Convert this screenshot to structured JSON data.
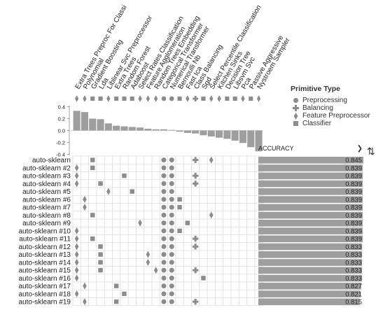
{
  "primitives": [
    {
      "name": "Extra Trees Preproc For Classi",
      "type": "Feature Preprocessor",
      "weight": 0.33
    },
    {
      "name": "Polynomial",
      "type": "Feature Preprocessor",
      "weight": 0.31
    },
    {
      "name": "Gradient Boosting",
      "type": "Classifier",
      "weight": 0.2
    },
    {
      "name": "Lda",
      "type": "Classifier",
      "weight": 0.19
    },
    {
      "name": "Liblinear Svc Preprocessor",
      "type": "Feature Preprocessor",
      "weight": 0.12
    },
    {
      "name": "Extra Trees",
      "type": "Classifier",
      "weight": 0.08
    },
    {
      "name": "Random Forest",
      "type": "Classifier",
      "weight": 0.07
    },
    {
      "name": "Adaboost",
      "type": "Classifier",
      "weight": 0.06
    },
    {
      "name": "Select Rates Classification",
      "type": "Feature Preprocessor",
      "weight": 0.05
    },
    {
      "name": "Feature Agglomeration",
      "type": "Feature Preprocessor",
      "weight": 0.03
    },
    {
      "name": "Random Trees Embedding",
      "type": "Feature Preprocessor",
      "weight": 0.02
    },
    {
      "name": "Categorical Transformer",
      "type": "Preprocessing",
      "weight": 0.02
    },
    {
      "name": "Numerical Transformer",
      "type": "Preprocessing",
      "weight": 0.01
    },
    {
      "name": "Bernoulli Nb",
      "type": "Classifier",
      "weight": -0.02
    },
    {
      "name": "Fast Ica",
      "type": "Feature Preprocessor",
      "weight": -0.04
    },
    {
      "name": "Class Balancing",
      "type": "Balancing",
      "weight": -0.05
    },
    {
      "name": "Sgd",
      "type": "Classifier",
      "weight": -0.08
    },
    {
      "name": "Select Percentile Classification",
      "type": "Feature Preprocessor",
      "weight": -0.1
    },
    {
      "name": "Kitchen Sinks",
      "type": "Feature Preprocessor",
      "weight": -0.12
    },
    {
      "name": "Decision Tree",
      "type": "Classifier",
      "weight": -0.14
    },
    {
      "name": "Libsvm Svc",
      "type": "Classifier",
      "weight": -0.17
    },
    {
      "name": "Pca",
      "type": "Feature Preprocessor",
      "weight": -0.21
    },
    {
      "name": "Passive Aggressive",
      "type": "Classifier",
      "weight": -0.28
    },
    {
      "name": "Nystroem Sampler",
      "type": "Feature Preprocessor",
      "weight": -0.35
    }
  ],
  "weight_axis": {
    "ticks": [
      "0.4",
      "0.2",
      "0.0",
      "-0.2",
      "-0.4"
    ],
    "range": [
      -0.45,
      0.45
    ]
  },
  "legend": {
    "title": "Primitive Type",
    "items": [
      {
        "label": "Preprocessing",
        "icon": "circle-icon"
      },
      {
        "label": "Balancing",
        "icon": "plus-icon"
      },
      {
        "label": "Feature Preprocessor",
        "icon": "diamond-icon"
      },
      {
        "label": "Classifier",
        "icon": "square-icon"
      }
    ]
  },
  "sort": {
    "metric": "ACCURACY"
  },
  "colors": {
    "mark": "#8c8c8c",
    "bar": "#9e9e9e",
    "grid": "#dddddd",
    "text": "#222222"
  },
  "pipelines": [
    {
      "name": "auto-sklearn",
      "score": 0.845,
      "score_label": "0.845",
      "cells": [
        [
          2,
          "square"
        ],
        [
          11,
          "circle"
        ],
        [
          12,
          "circle"
        ],
        [
          15,
          "plus"
        ],
        [
          17,
          "diamond"
        ]
      ]
    },
    {
      "name": "auto-sklearn #2",
      "score": 0.839,
      "score_label": "0.839",
      "cells": [
        [
          0,
          "diamond"
        ],
        [
          2,
          "square"
        ],
        [
          11,
          "circle"
        ],
        [
          12,
          "circle"
        ]
      ]
    },
    {
      "name": "auto-sklearn #3",
      "score": 0.839,
      "score_label": "0.839",
      "cells": [
        [
          0,
          "diamond"
        ],
        [
          6,
          "square"
        ],
        [
          11,
          "circle"
        ],
        [
          12,
          "circle"
        ],
        [
          15,
          "plus"
        ]
      ]
    },
    {
      "name": "auto-sklearn #4",
      "score": 0.839,
      "score_label": "0.839",
      "cells": [
        [
          0,
          "diamond"
        ],
        [
          3,
          "square"
        ],
        [
          11,
          "circle"
        ],
        [
          12,
          "circle"
        ],
        [
          15,
          "plus"
        ]
      ]
    },
    {
      "name": "auto-sklearn #5",
      "score": 0.839,
      "score_label": "0.839",
      "cells": [
        [
          4,
          "diamond"
        ],
        [
          7,
          "square"
        ],
        [
          11,
          "circle"
        ],
        [
          12,
          "circle"
        ]
      ]
    },
    {
      "name": "auto-sklearn #6",
      "score": 0.839,
      "score_label": "0.839",
      "cells": [
        [
          1,
          "diamond"
        ],
        [
          11,
          "circle"
        ],
        [
          12,
          "circle"
        ],
        [
          13,
          "square"
        ]
      ]
    },
    {
      "name": "auto-sklearn #7",
      "score": 0.839,
      "score_label": "0.839",
      "cells": [
        [
          1,
          "diamond"
        ],
        [
          11,
          "circle"
        ],
        [
          12,
          "circle"
        ],
        [
          13,
          "square"
        ]
      ]
    },
    {
      "name": "auto-sklearn #8",
      "score": 0.839,
      "score_label": "0.839",
      "cells": [
        [
          2,
          "square"
        ],
        [
          11,
          "circle"
        ],
        [
          12,
          "circle"
        ],
        [
          17,
          "diamond"
        ]
      ]
    },
    {
      "name": "auto-sklearn #9",
      "score": 0.839,
      "score_label": "0.839",
      "cells": [
        [
          8,
          "diamond"
        ],
        [
          11,
          "circle"
        ],
        [
          12,
          "circle"
        ],
        [
          14,
          "square"
        ]
      ]
    },
    {
      "name": "auto-sklearn #10",
      "score": 0.839,
      "score_label": "0.839",
      "cells": [
        [
          0,
          "diamond"
        ],
        [
          11,
          "circle"
        ],
        [
          12,
          "circle"
        ],
        [
          13,
          "square"
        ]
      ]
    },
    {
      "name": "auto-sklearn #11",
      "score": 0.839,
      "score_label": "0.839",
      "cells": [
        [
          0,
          "diamond"
        ],
        [
          2,
          "square"
        ],
        [
          11,
          "circle"
        ],
        [
          12,
          "circle"
        ],
        [
          15,
          "plus"
        ]
      ]
    },
    {
      "name": "auto-sklearn #12",
      "score": 0.833,
      "score_label": "0.833",
      "cells": [
        [
          0,
          "diamond"
        ],
        [
          3,
          "square"
        ],
        [
          11,
          "circle"
        ],
        [
          12,
          "circle"
        ],
        [
          15,
          "plus"
        ]
      ]
    },
    {
      "name": "auto-sklearn #13",
      "score": 0.833,
      "score_label": "0.833",
      "cells": [
        [
          0,
          "diamond"
        ],
        [
          3,
          "square"
        ],
        [
          9,
          "diamond"
        ],
        [
          11,
          "circle"
        ],
        [
          12,
          "circle"
        ]
      ]
    },
    {
      "name": "auto-sklearn #14",
      "score": 0.833,
      "score_label": "0.833",
      "cells": [
        [
          0,
          "diamond"
        ],
        [
          3,
          "square"
        ],
        [
          9,
          "diamond"
        ],
        [
          11,
          "circle"
        ],
        [
          12,
          "circle"
        ]
      ]
    },
    {
      "name": "auto-sklearn #15",
      "score": 0.833,
      "score_label": "0.833",
      "cells": [
        [
          0,
          "diamond"
        ],
        [
          3,
          "square"
        ],
        [
          10,
          "diamond"
        ],
        [
          11,
          "circle"
        ],
        [
          12,
          "circle"
        ],
        [
          15,
          "plus"
        ]
      ]
    },
    {
      "name": "auto-sklearn #16",
      "score": 0.833,
      "score_label": "0.833",
      "cells": [
        [
          0,
          "diamond"
        ],
        [
          11,
          "circle"
        ],
        [
          12,
          "circle"
        ],
        [
          16,
          "square"
        ]
      ]
    },
    {
      "name": "auto-sklearn #17",
      "score": 0.827,
      "score_label": "0.827",
      "cells": [
        [
          1,
          "diamond"
        ],
        [
          5,
          "square"
        ],
        [
          11,
          "circle"
        ],
        [
          12,
          "circle"
        ]
      ]
    },
    {
      "name": "auto-sklearn #18",
      "score": 0.821,
      "score_label": "0.821",
      "cells": [
        [
          0,
          "diamond"
        ],
        [
          6,
          "square"
        ],
        [
          11,
          "circle"
        ],
        [
          12,
          "circle"
        ]
      ]
    },
    {
      "name": "auto-sklearn #19",
      "score": 0.815,
      "score_label": "0.815",
      "cells": [
        [
          1,
          "diamond"
        ],
        [
          5,
          "square"
        ],
        [
          11,
          "circle"
        ],
        [
          12,
          "circle"
        ],
        [
          15,
          "plus"
        ]
      ]
    }
  ],
  "score_axis_range": [
    0,
    0.845
  ]
}
